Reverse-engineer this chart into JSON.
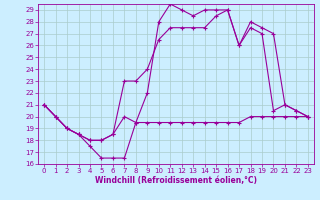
{
  "xlabel": "Windchill (Refroidissement éolien,°C)",
  "background_color": "#cceeff",
  "grid_color": "#aacccc",
  "line_color": "#990099",
  "xlim": [
    -0.5,
    23.5
  ],
  "ylim": [
    16,
    29.5
  ],
  "xticks": [
    0,
    1,
    2,
    3,
    4,
    5,
    6,
    7,
    8,
    9,
    10,
    11,
    12,
    13,
    14,
    15,
    16,
    17,
    18,
    19,
    20,
    21,
    22,
    23
  ],
  "yticks": [
    16,
    17,
    18,
    19,
    20,
    21,
    22,
    23,
    24,
    25,
    26,
    27,
    28,
    29
  ],
  "series1_x": [
    0,
    1,
    2,
    3,
    4,
    5,
    6,
    7,
    8,
    9,
    10,
    11,
    12,
    13,
    14,
    15,
    16,
    17,
    18,
    19,
    20,
    21,
    22,
    23
  ],
  "series1_y": [
    21.0,
    20.0,
    19.0,
    18.5,
    17.5,
    16.5,
    16.5,
    16.5,
    19.5,
    22.0,
    28.0,
    29.5,
    29.0,
    28.5,
    29.0,
    29.0,
    29.0,
    26.0,
    27.5,
    27.0,
    20.5,
    21.0,
    20.5,
    20.0
  ],
  "series2_x": [
    0,
    1,
    2,
    3,
    4,
    5,
    6,
    7,
    8,
    9,
    10,
    11,
    12,
    13,
    14,
    15,
    16,
    17,
    18,
    19,
    20,
    21,
    22,
    23
  ],
  "series2_y": [
    21.0,
    20.0,
    19.0,
    18.5,
    18.0,
    18.0,
    18.5,
    23.0,
    23.0,
    24.0,
    26.5,
    27.5,
    27.5,
    27.5,
    27.5,
    28.5,
    29.0,
    26.0,
    28.0,
    27.5,
    27.0,
    21.0,
    20.5,
    20.0
  ],
  "series3_x": [
    0,
    1,
    2,
    3,
    4,
    5,
    6,
    7,
    8,
    9,
    10,
    11,
    12,
    13,
    14,
    15,
    16,
    17,
    18,
    19,
    20,
    21,
    22,
    23
  ],
  "series3_y": [
    21.0,
    20.0,
    19.0,
    18.5,
    18.0,
    18.0,
    18.5,
    20.0,
    19.5,
    19.5,
    19.5,
    19.5,
    19.5,
    19.5,
    19.5,
    19.5,
    19.5,
    19.5,
    20.0,
    20.0,
    20.0,
    20.0,
    20.0,
    20.0
  ],
  "tick_fontsize": 5,
  "xlabel_fontsize": 5.5,
  "linewidth": 0.8,
  "markersize": 3
}
